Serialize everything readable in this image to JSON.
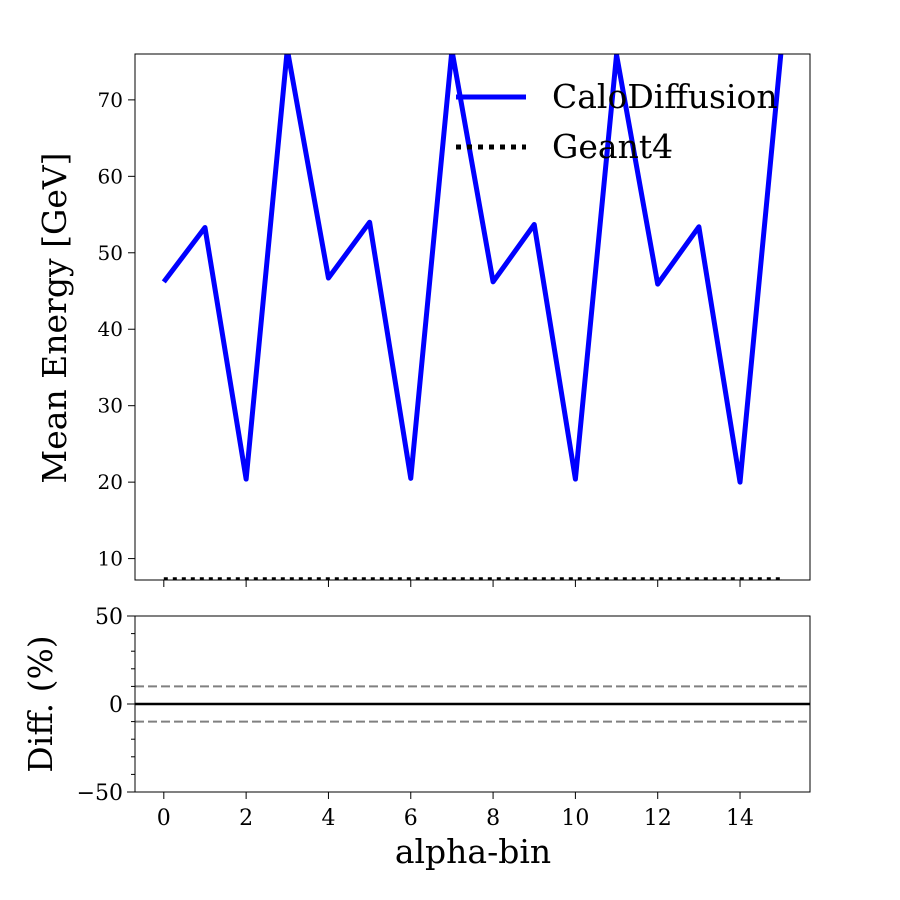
{
  "chart_data": [
    {
      "type": "line",
      "ylabel": "Mean Energy [GeV]",
      "ylim": [
        7.2,
        76
      ],
      "xlim": [
        -0.7,
        15.7
      ],
      "yticks": [
        10,
        20,
        30,
        40,
        50,
        60,
        70
      ],
      "grid": false,
      "legend": {
        "placement": "top-right",
        "entries": [
          "CaloDiffusion",
          "Geant4"
        ]
      },
      "series": [
        {
          "name": "CaloDiffusion",
          "color": "#0000ff",
          "style": "solid",
          "x": [
            0,
            1,
            2,
            3,
            4,
            5,
            6,
            7,
            8,
            9,
            10,
            11,
            12,
            13,
            14,
            15
          ],
          "values": [
            46.2,
            53.3,
            20.4,
            76.6,
            46.7,
            54.0,
            20.5,
            76.5,
            46.2,
            53.7,
            20.4,
            75.9,
            45.9,
            53.4,
            20.0,
            76.5
          ]
        },
        {
          "name": "Geant4",
          "color": "#000000",
          "style": "dotted",
          "x": [
            0,
            1,
            2,
            3,
            4,
            5,
            6,
            7,
            8,
            9,
            10,
            11,
            12,
            13,
            14,
            15
          ],
          "values": [
            7.3,
            7.3,
            7.3,
            7.3,
            7.3,
            7.3,
            7.3,
            7.3,
            7.3,
            7.3,
            7.3,
            7.3,
            7.3,
            7.3,
            7.3,
            7.3
          ]
        }
      ]
    },
    {
      "type": "line",
      "xlabel": "alpha-bin",
      "ylabel": "Diff. (%)",
      "ylim": [
        -50,
        50
      ],
      "xlim": [
        -0.7,
        15.7
      ],
      "xticks": [
        0,
        2,
        4,
        6,
        8,
        10,
        12,
        14
      ],
      "yticks": [
        -50,
        0,
        50
      ],
      "ytick_labels": [
        "−50",
        "0",
        "50"
      ],
      "grid": false,
      "reference_lines": [
        {
          "y": 0,
          "color": "#000000",
          "style": "solid"
        },
        {
          "y": 10,
          "color": "#808080",
          "style": "dashed"
        },
        {
          "y": -10,
          "color": "#808080",
          "style": "dashed"
        }
      ]
    }
  ]
}
